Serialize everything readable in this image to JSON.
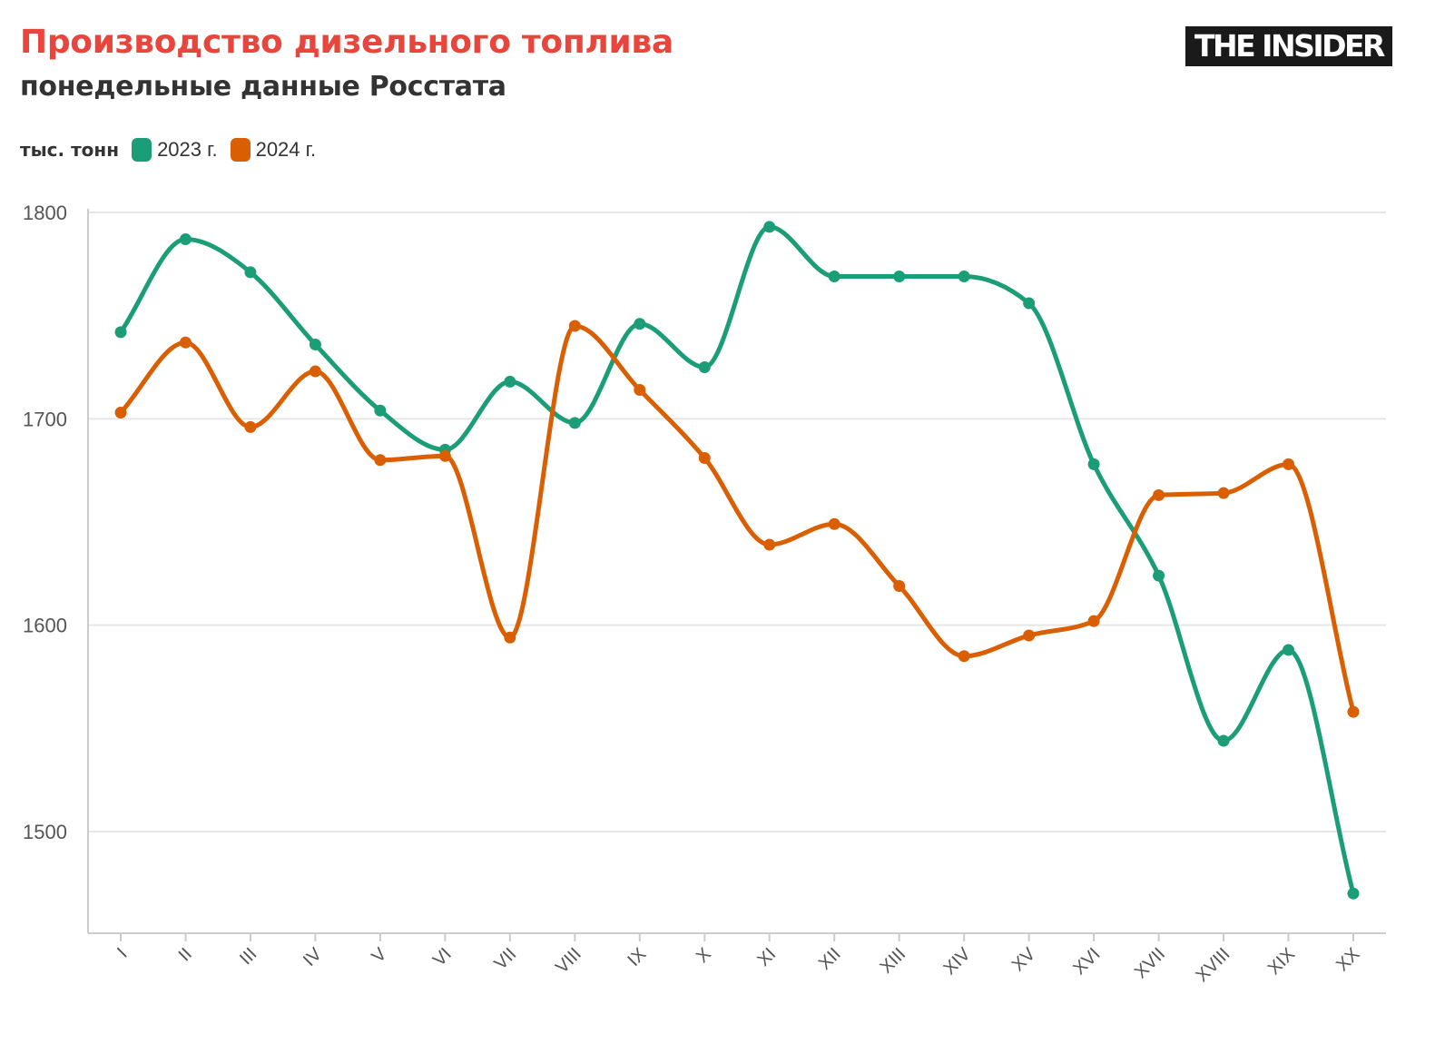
{
  "header": {
    "title": "Производство дизельного топлива",
    "subtitle": "понедельные данные Росстата",
    "logo_text": "THE INSIDER"
  },
  "legend": {
    "unit_label": "тыс. тонн"
  },
  "colors": {
    "title": "#e8453c",
    "series_2023": "#1b9e77",
    "series_2024": "#d95f02",
    "grid": "#e6e6e6",
    "axis": "#cccccc"
  },
  "chart_data": {
    "type": "line",
    "title": "Производство дизельного топлива",
    "subtitle": "понедельные данные Росстата",
    "xlabel": "",
    "ylabel": "тыс. тонн",
    "categories": [
      "I",
      "II",
      "III",
      "IV",
      "V",
      "VI",
      "VII",
      "VIII",
      "IX",
      "X",
      "XI",
      "XII",
      "XIII",
      "XIV",
      "XV",
      "XVI",
      "XVII",
      "XVIII",
      "XIX",
      "XX"
    ],
    "series": [
      {
        "name": "2023 г.",
        "color": "#1b9e77",
        "values": [
          1742,
          1787,
          1771,
          1736,
          1704,
          1685,
          1718,
          1698,
          1746,
          1725,
          1793,
          1769,
          1769,
          1769,
          1756,
          1678,
          1624,
          1544,
          1588,
          1470
        ]
      },
      {
        "name": "2024 г.",
        "color": "#d95f02",
        "values": [
          1703,
          1737,
          1696,
          1723,
          1680,
          1682,
          1594,
          1745,
          1714,
          1681,
          1639,
          1649,
          1619,
          1585,
          1595,
          1602,
          1663,
          1664,
          1678,
          1558
        ]
      }
    ],
    "yticks": [
      1500,
      1600,
      1700,
      1800
    ],
    "ylim": [
      1450,
      1800
    ],
    "grid": true,
    "legend_position": "top-left",
    "curve": "smooth"
  }
}
